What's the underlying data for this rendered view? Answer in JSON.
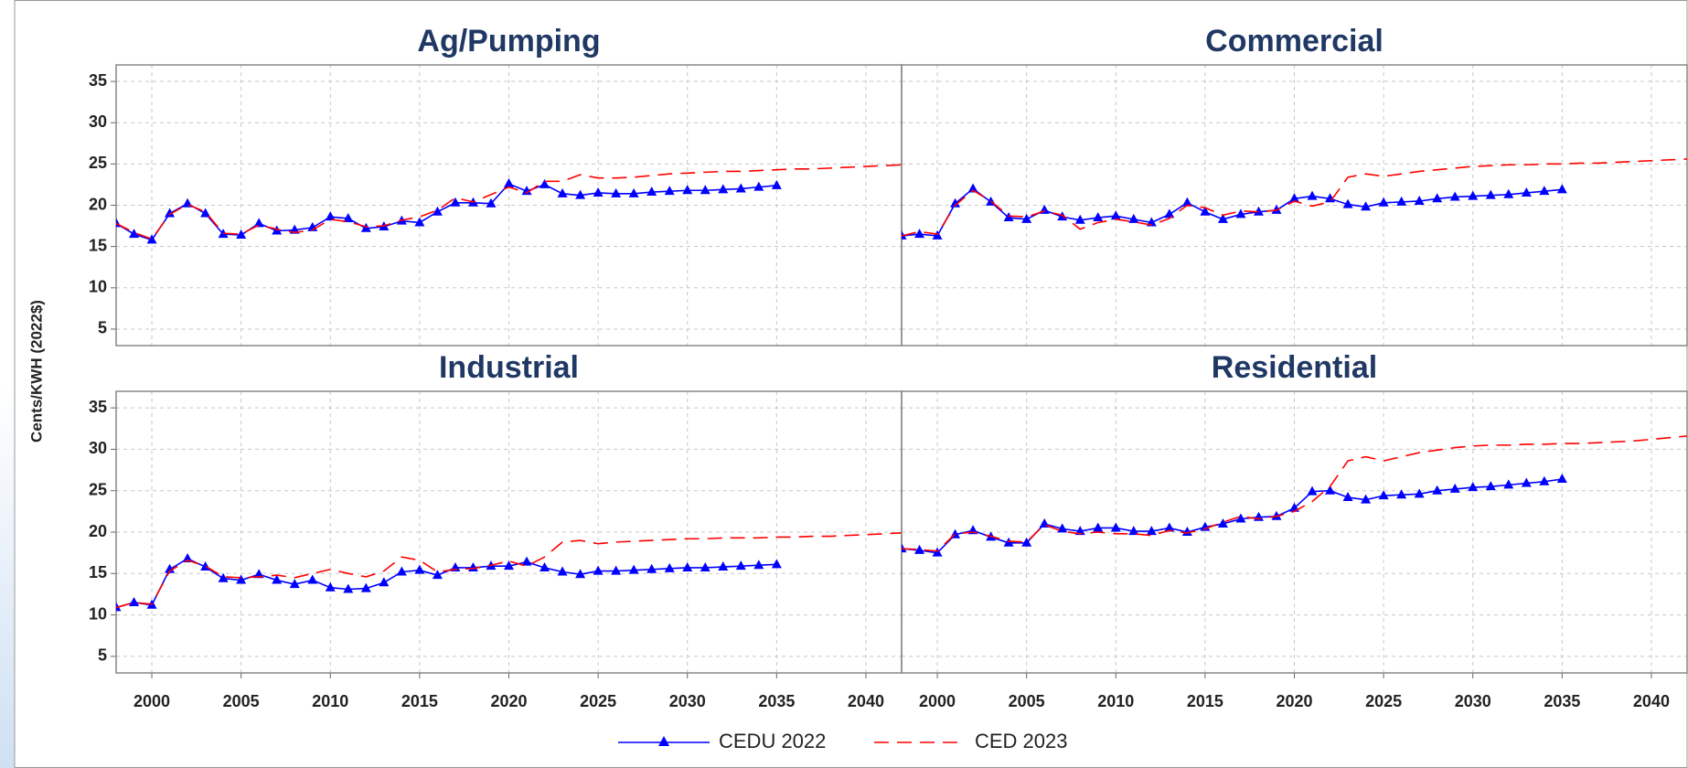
{
  "chart_data": [
    {
      "type": "line",
      "title": "Ag/Pumping",
      "ylabel": "Cents/KWH (2022$)",
      "x": [
        1998,
        1999,
        2000,
        2001,
        2002,
        2003,
        2004,
        2005,
        2006,
        2007,
        2008,
        2009,
        2010,
        2011,
        2012,
        2013,
        2014,
        2015,
        2016,
        2017,
        2018,
        2019,
        2020,
        2021,
        2022,
        2023,
        2024,
        2025,
        2026,
        2027,
        2028,
        2029,
        2030,
        2031,
        2032,
        2033,
        2034,
        2035,
        2036,
        2037,
        2038,
        2039,
        2040,
        2041,
        2042
      ],
      "series": [
        {
          "name": "CEDU 2022",
          "color": "#0000ff",
          "marker": "triangle",
          "dash": false,
          "values": [
            17.8,
            16.5,
            15.8,
            19,
            20.2,
            19,
            16.5,
            16.4,
            17.8,
            16.9,
            17.0,
            17.3,
            18.6,
            18.4,
            17.2,
            17.4,
            18.1,
            17.9,
            19.2,
            20.3,
            20.3,
            20.2,
            22.6,
            21.7,
            22.5,
            21.4,
            21.2,
            21.5,
            21.4,
            21.4,
            21.6,
            21.7,
            21.8,
            21.8,
            21.9,
            22.0,
            22.2,
            22.4,
            null,
            null,
            null,
            null,
            null,
            null,
            null
          ]
        },
        {
          "name": "CED 2023",
          "color": "#ff0000",
          "marker": null,
          "dash": true,
          "values": [
            17.8,
            16.7,
            15.9,
            18.9,
            20.1,
            19.2,
            16.6,
            16.5,
            17.6,
            17.1,
            16.7,
            17.0,
            18.3,
            18.0,
            17.4,
            17.5,
            18.2,
            18.6,
            19.4,
            20.9,
            20.4,
            21.3,
            22.2,
            21.5,
            22.9,
            22.9,
            23.7,
            23.3,
            23.3,
            23.4,
            23.6,
            23.8,
            23.9,
            24.0,
            24.1,
            24.1,
            24.2,
            24.3,
            24.4,
            24.4,
            24.5,
            24.6,
            24.7,
            24.8,
            24.9
          ]
        }
      ],
      "xlim": [
        1998,
        2042
      ],
      "ylim": [
        3,
        37
      ],
      "xticks": [
        2000,
        2005,
        2010,
        2015,
        2020,
        2025,
        2030,
        2035,
        2040
      ],
      "yticks": [
        5,
        10,
        15,
        20,
        25,
        30,
        35
      ],
      "grid": true
    },
    {
      "type": "line",
      "title": "Commercial",
      "x": [
        1998,
        1999,
        2000,
        2001,
        2002,
        2003,
        2004,
        2005,
        2006,
        2007,
        2008,
        2009,
        2010,
        2011,
        2012,
        2013,
        2014,
        2015,
        2016,
        2017,
        2018,
        2019,
        2020,
        2021,
        2022,
        2023,
        2024,
        2025,
        2026,
        2027,
        2028,
        2029,
        2030,
        2031,
        2032,
        2033,
        2034,
        2035,
        2036,
        2037,
        2038,
        2039,
        2040,
        2041,
        2042
      ],
      "series": [
        {
          "name": "CEDU 2022",
          "color": "#0000ff",
          "marker": "triangle",
          "dash": false,
          "values": [
            16.3,
            16.5,
            16.3,
            20.2,
            22.0,
            20.4,
            18.5,
            18.3,
            19.4,
            18.6,
            18.2,
            18.5,
            18.7,
            18.3,
            17.9,
            18.9,
            20.3,
            19.2,
            18.3,
            18.9,
            19.2,
            19.4,
            20.8,
            21.1,
            20.8,
            20.1,
            19.8,
            20.3,
            20.4,
            20.5,
            20.8,
            21.0,
            21.1,
            21.2,
            21.3,
            21.5,
            21.7,
            21.9,
            null,
            null,
            null,
            null,
            null,
            null,
            null
          ]
        },
        {
          "name": "CED 2023",
          "color": "#ff0000",
          "marker": null,
          "dash": true,
          "values": [
            16.3,
            16.8,
            16.5,
            20.0,
            21.8,
            20.5,
            18.7,
            18.6,
            19.3,
            18.8,
            17.1,
            17.9,
            18.3,
            18.0,
            17.6,
            18.4,
            20.0,
            19.7,
            18.8,
            19.3,
            19.2,
            19.4,
            20.5,
            19.9,
            20.4,
            23.4,
            23.8,
            23.5,
            23.8,
            24.1,
            24.3,
            24.5,
            24.7,
            24.8,
            24.9,
            24.9,
            25.0,
            25.0,
            25.1,
            25.1,
            25.2,
            25.3,
            25.4,
            25.5,
            25.6
          ]
        }
      ],
      "xlim": [
        1998,
        2042
      ],
      "ylim": [
        3,
        37
      ],
      "xticks": [
        2000,
        2005,
        2010,
        2015,
        2020,
        2025,
        2030,
        2035,
        2040
      ],
      "yticks": [
        5,
        10,
        15,
        20,
        25,
        30,
        35
      ],
      "grid": true
    },
    {
      "type": "line",
      "title": "Industrial",
      "x": [
        1998,
        1999,
        2000,
        2001,
        2002,
        2003,
        2004,
        2005,
        2006,
        2007,
        2008,
        2009,
        2010,
        2011,
        2012,
        2013,
        2014,
        2015,
        2016,
        2017,
        2018,
        2019,
        2020,
        2021,
        2022,
        2023,
        2024,
        2025,
        2026,
        2027,
        2028,
        2029,
        2030,
        2031,
        2032,
        2033,
        2034,
        2035,
        2036,
        2037,
        2038,
        2039,
        2040,
        2041,
        2042
      ],
      "series": [
        {
          "name": "CEDU 2022",
          "color": "#0000ff",
          "marker": "triangle",
          "dash": false,
          "values": [
            10.9,
            11.5,
            11.2,
            15.5,
            16.8,
            15.8,
            14.4,
            14.2,
            14.9,
            14.2,
            13.7,
            14.2,
            13.3,
            13.1,
            13.2,
            13.9,
            15.2,
            15.4,
            14.8,
            15.7,
            15.7,
            15.9,
            15.9,
            16.4,
            15.7,
            15.2,
            14.9,
            15.3,
            15.3,
            15.4,
            15.5,
            15.6,
            15.7,
            15.7,
            15.8,
            15.9,
            16.0,
            16.1,
            null,
            null,
            null,
            null,
            null,
            null,
            null
          ]
        },
        {
          "name": "CED 2023",
          "color": "#ff0000",
          "marker": null,
          "dash": true,
          "values": [
            10.9,
            11.5,
            11.3,
            15.3,
            16.6,
            15.9,
            14.6,
            14.5,
            14.6,
            14.8,
            14.5,
            15.0,
            15.5,
            15.0,
            14.6,
            15.3,
            17.0,
            16.6,
            15.2,
            15.5,
            15.6,
            16.0,
            16.5,
            15.9,
            17.0,
            18.8,
            19.0,
            18.6,
            18.8,
            18.9,
            19.0,
            19.1,
            19.2,
            19.2,
            19.3,
            19.3,
            19.3,
            19.4,
            19.4,
            19.5,
            19.5,
            19.6,
            19.7,
            19.8,
            19.9
          ]
        }
      ],
      "xlim": [
        1998,
        2042
      ],
      "ylim": [
        3,
        37
      ],
      "xticks": [
        2000,
        2005,
        2010,
        2015,
        2020,
        2025,
        2030,
        2035,
        2040
      ],
      "yticks": [
        5,
        10,
        15,
        20,
        25,
        30,
        35
      ],
      "grid": true
    },
    {
      "type": "line",
      "title": "Residential",
      "x": [
        1998,
        1999,
        2000,
        2001,
        2002,
        2003,
        2004,
        2005,
        2006,
        2007,
        2008,
        2009,
        2010,
        2011,
        2012,
        2013,
        2014,
        2015,
        2016,
        2017,
        2018,
        2019,
        2020,
        2021,
        2022,
        2023,
        2024,
        2025,
        2026,
        2027,
        2028,
        2029,
        2030,
        2031,
        2032,
        2033,
        2034,
        2035,
        2036,
        2037,
        2038,
        2039,
        2040,
        2041,
        2042
      ],
      "series": [
        {
          "name": "CEDU 2022",
          "color": "#0000ff",
          "marker": "triangle",
          "dash": false,
          "values": [
            18.0,
            17.8,
            17.5,
            19.7,
            20.2,
            19.4,
            18.7,
            18.7,
            21.0,
            20.4,
            20.1,
            20.5,
            20.5,
            20.1,
            20.1,
            20.5,
            20.0,
            20.6,
            21.0,
            21.6,
            21.8,
            21.9,
            22.9,
            24.9,
            25.0,
            24.2,
            23.9,
            24.4,
            24.5,
            24.6,
            25.0,
            25.2,
            25.4,
            25.5,
            25.7,
            25.9,
            26.1,
            26.4,
            null,
            null,
            null,
            null,
            null,
            null,
            null
          ]
        },
        {
          "name": "CED 2023",
          "color": "#ff0000",
          "marker": null,
          "dash": true,
          "values": [
            18.0,
            17.9,
            17.7,
            19.8,
            20.0,
            19.5,
            18.9,
            18.8,
            20.9,
            20.1,
            19.8,
            20.0,
            19.8,
            19.8,
            19.6,
            20.2,
            19.9,
            20.4,
            21.2,
            21.9,
            21.6,
            21.9,
            22.5,
            23.7,
            25.5,
            28.6,
            29.1,
            28.6,
            29.1,
            29.6,
            29.9,
            30.2,
            30.4,
            30.5,
            30.5,
            30.6,
            30.6,
            30.7,
            30.7,
            30.8,
            30.9,
            31.0,
            31.2,
            31.4,
            31.6
          ]
        }
      ],
      "xlim": [
        1998,
        2042
      ],
      "ylim": [
        3,
        37
      ],
      "xticks": [
        2000,
        2005,
        2010,
        2015,
        2020,
        2025,
        2030,
        2035,
        2040
      ],
      "yticks": [
        5,
        10,
        15,
        20,
        25,
        30,
        35
      ],
      "grid": true
    }
  ]
}
